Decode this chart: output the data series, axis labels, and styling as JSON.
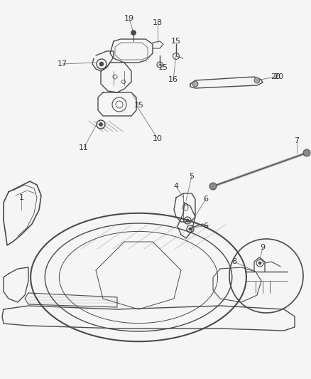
{
  "bg_color": "#f5f5f5",
  "line_color": "#4a4a4a",
  "label_color": "#333333",
  "fig_width": 4.38,
  "fig_height": 5.33,
  "dpi": 100
}
